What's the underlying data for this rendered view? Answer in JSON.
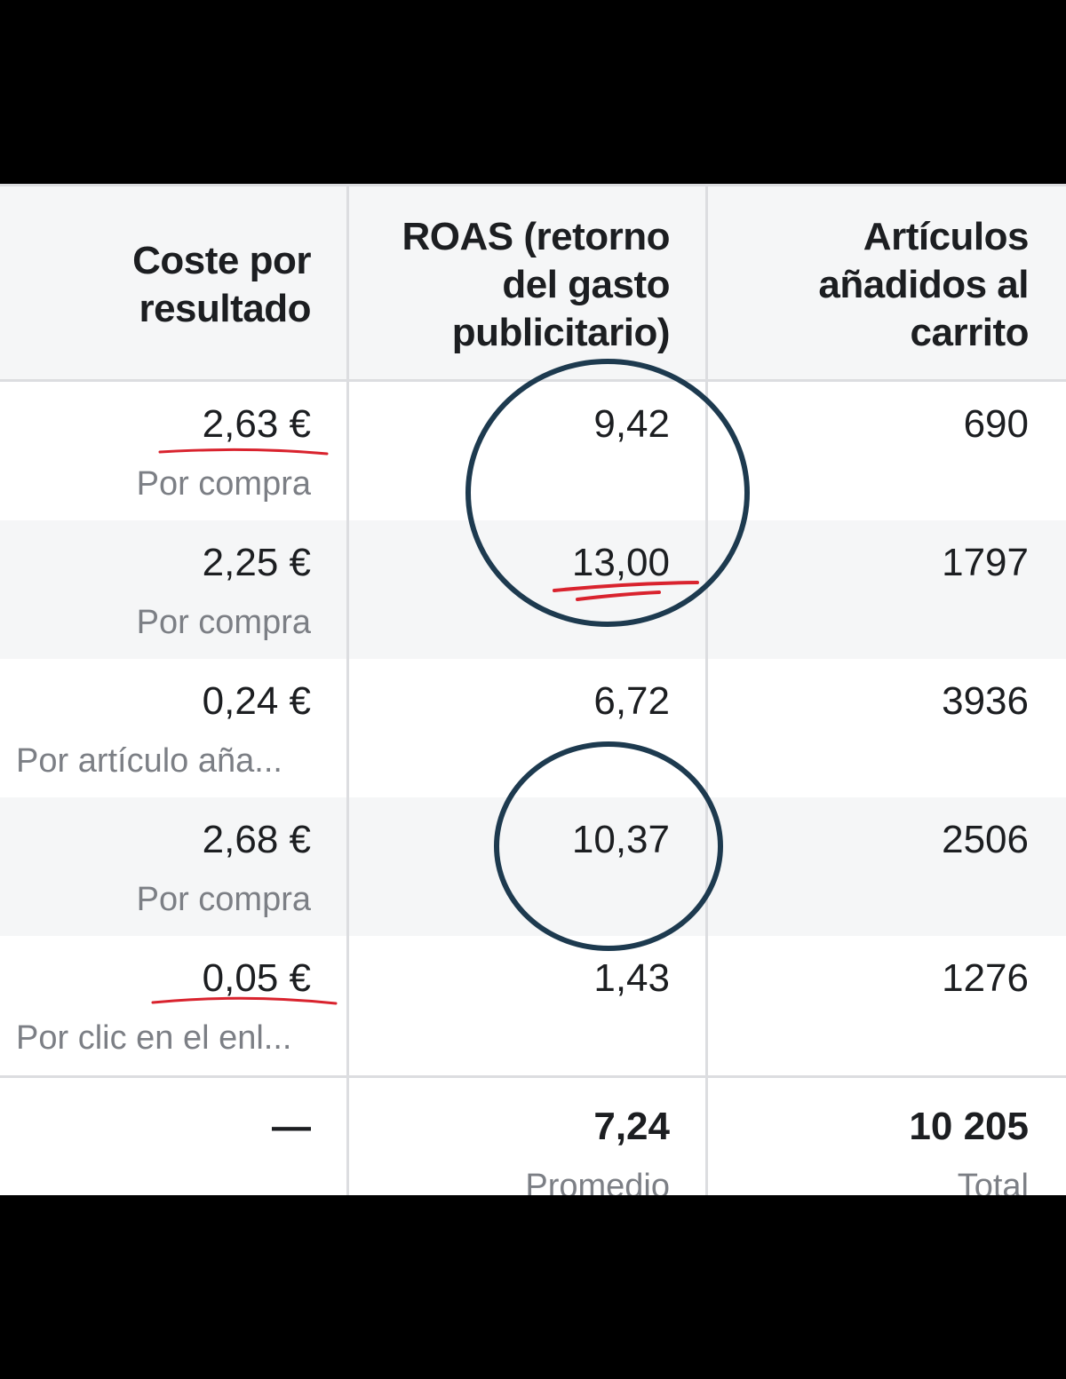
{
  "columns": [
    {
      "header": "Coste por resultado"
    },
    {
      "header": "ROAS (retorno del gasto publicitario)"
    },
    {
      "header": "Artículos añadidos al carrito"
    }
  ],
  "header_lines": {
    "cost": [
      "Coste por",
      "resultado"
    ],
    "roas": [
      "ROAS (retorno",
      "del gasto",
      "publicitario)"
    ],
    "cart": [
      "Artículos",
      "añadidos al",
      "carrito"
    ]
  },
  "rows": [
    {
      "cost": "2,63 €",
      "cost_label": "Por compra",
      "roas": "9,42",
      "cart": "690"
    },
    {
      "cost": "2,25 €",
      "cost_label": "Por compra",
      "roas": "13,00",
      "cart": "1797"
    },
    {
      "cost": "0,24 €",
      "cost_label": "Por artículo aña...",
      "roas": "6,72",
      "cart": "3936"
    },
    {
      "cost": "2,68 €",
      "cost_label": "Por compra",
      "roas": "10,37",
      "cart": "2506"
    },
    {
      "cost": "0,05 €",
      "cost_label": "Por clic en el enl...",
      "roas": "1,43",
      "cart": "1276"
    }
  ],
  "summary": {
    "cost": "—",
    "roas": "7,24",
    "roas_label": "Promedio",
    "cart": "10 205",
    "cart_label": "Total"
  },
  "colors": {
    "header_bg": "#f5f6f7",
    "stripe_bg": "#f5f6f7",
    "text": "#1c1e21",
    "sublabel": "#7c7f85",
    "circle_annotation": "#1d3a4f",
    "underline_annotation": "#d9232e"
  }
}
